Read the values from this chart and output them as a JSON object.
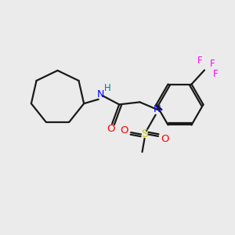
{
  "background_color": "#ebebeb",
  "atom_colors": {
    "C": "#000000",
    "N": "#0000ff",
    "O": "#ff0000",
    "S": "#cccc00",
    "F": "#ff00ff",
    "H": "#008080"
  },
  "bond_color": "#1a1a1a",
  "figsize": [
    3.0,
    3.0
  ],
  "dpi": 100,
  "xlim": [
    0,
    10
  ],
  "ylim": [
    0,
    10
  ]
}
